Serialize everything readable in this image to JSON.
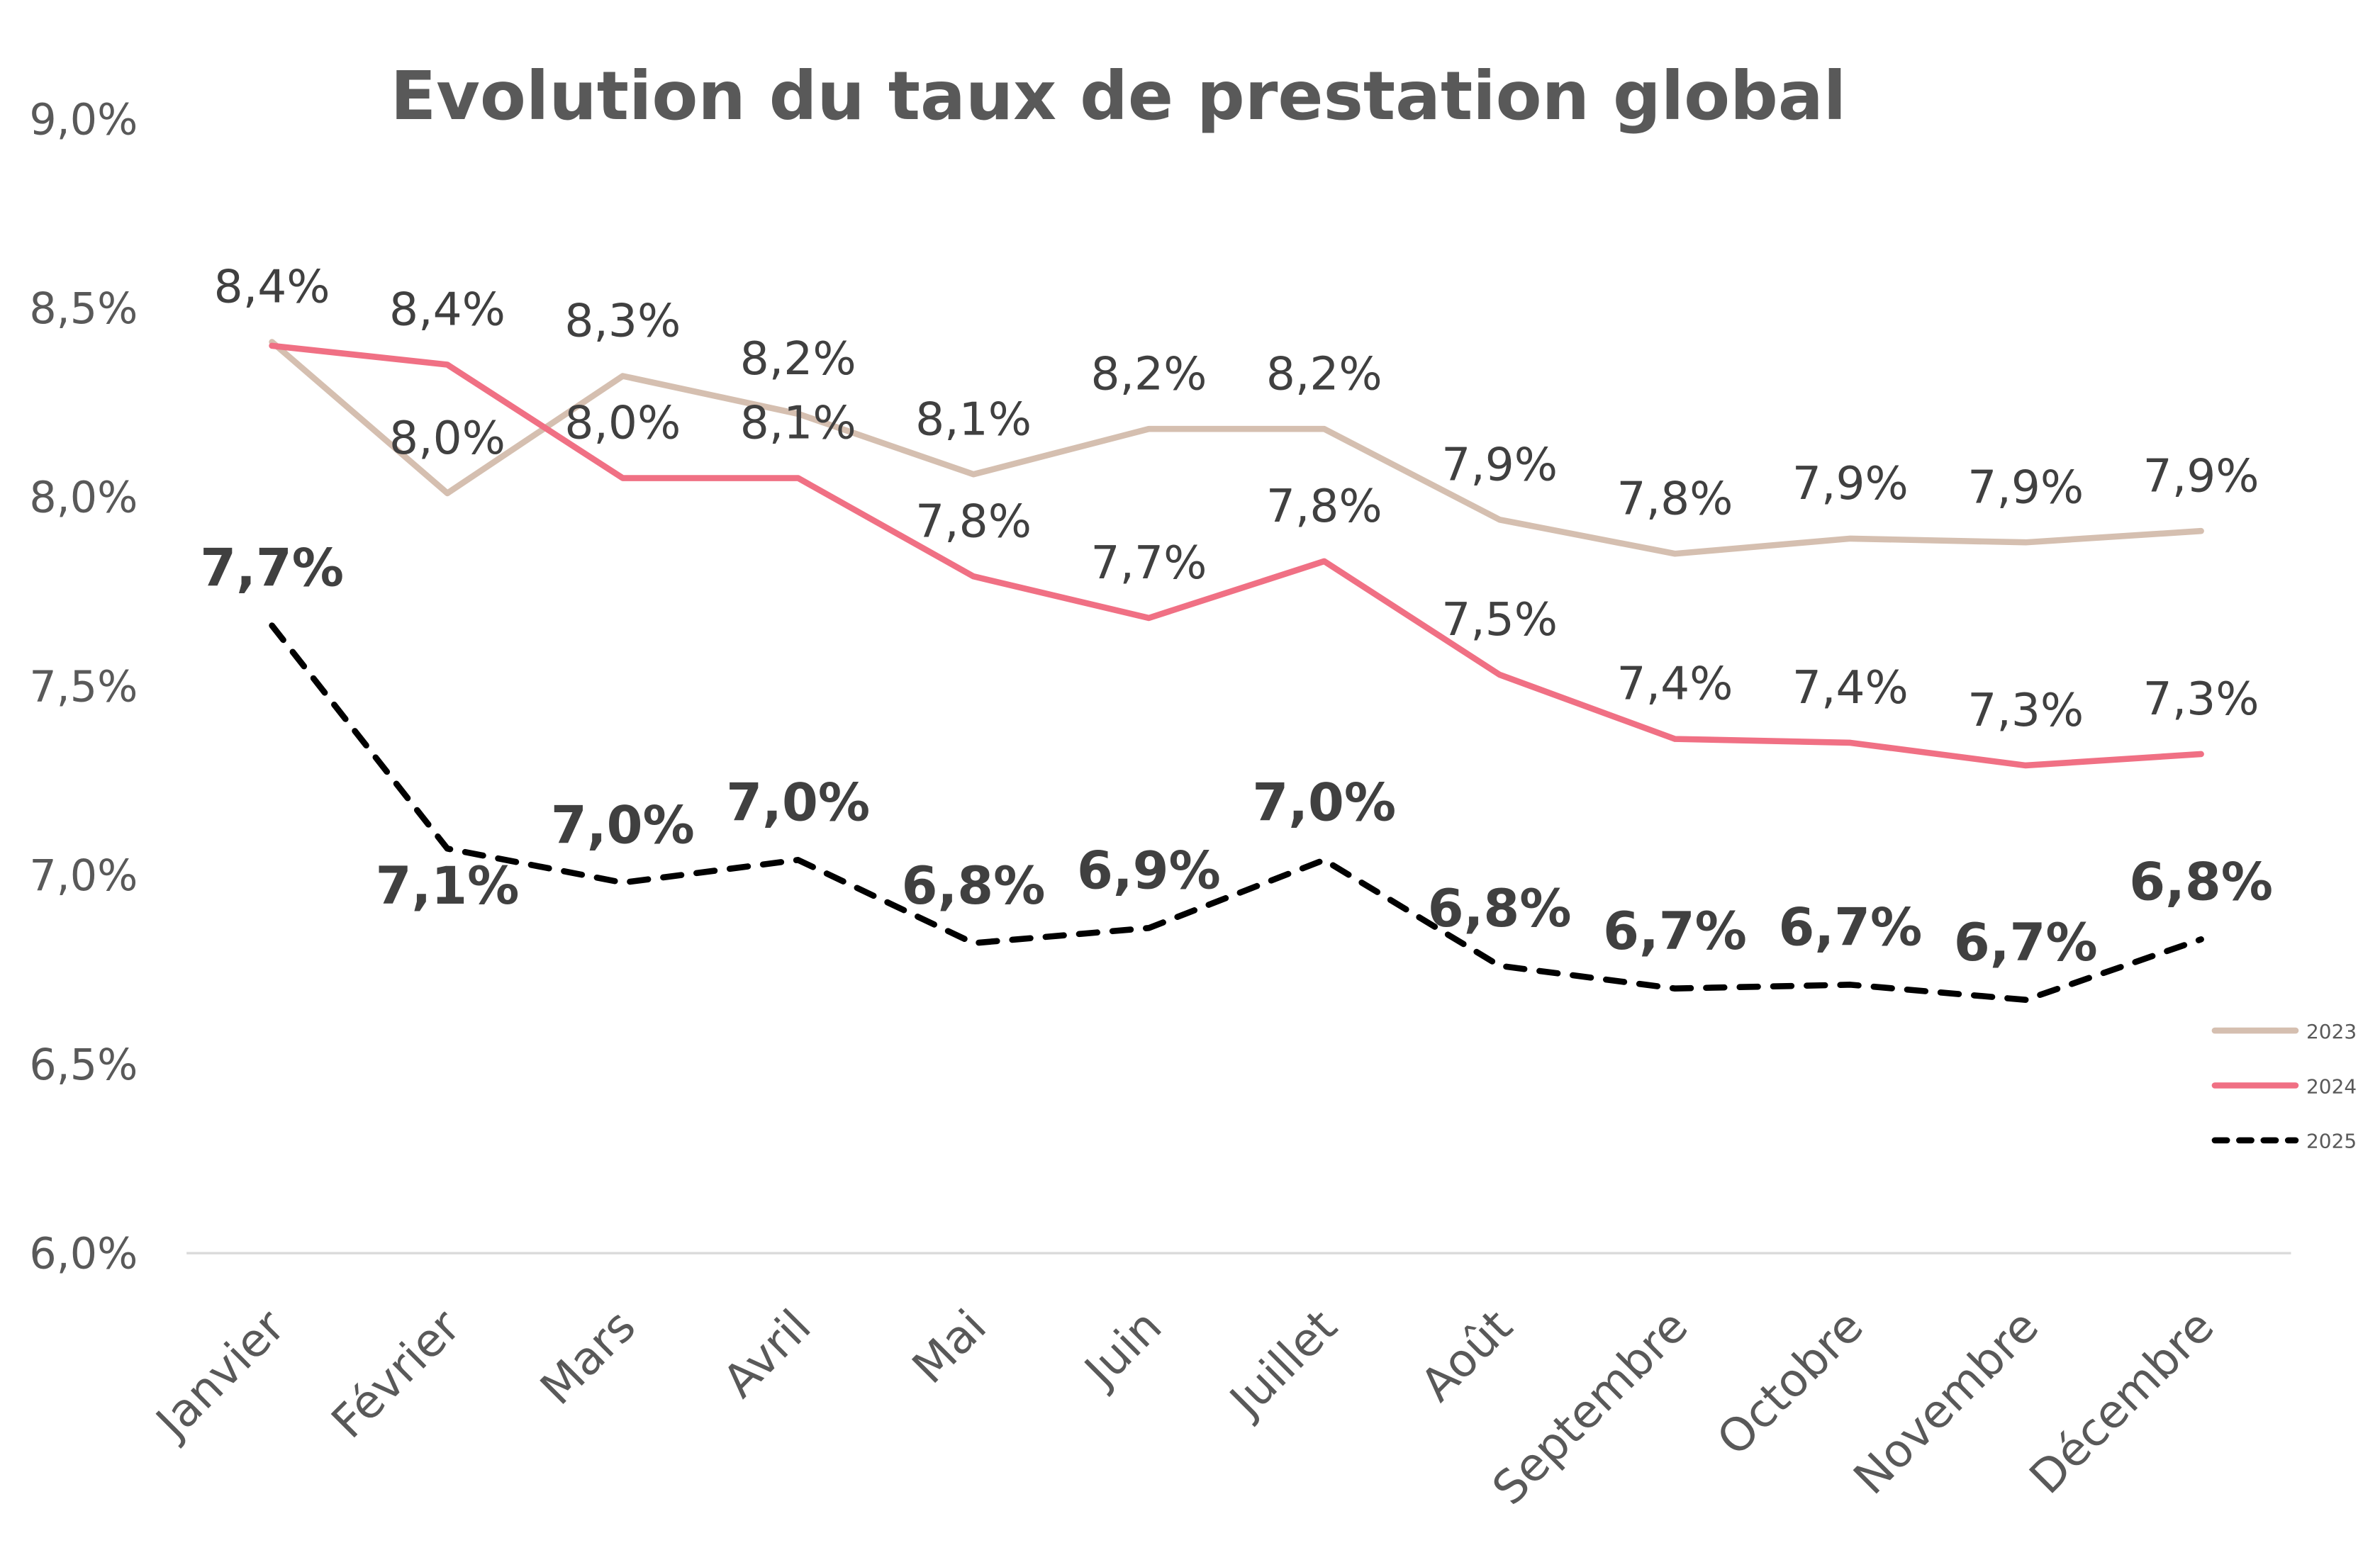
{
  "chart_data": {
    "type": "line",
    "title": "Evolution du taux de prestation global",
    "categories": [
      "Janvier",
      "Février",
      "Mars",
      "Avril",
      "Mai",
      "Juin",
      "Juillet",
      "Août",
      "Septembre",
      "Octobre",
      "Novembre",
      "Décembre"
    ],
    "ylim": [
      6.0,
      9.0
    ],
    "yticks": [
      "6,0%",
      "6,5%",
      "7,0%",
      "7,5%",
      "8,0%",
      "8,5%",
      "9,0%"
    ],
    "grid": false,
    "legend_position": "right",
    "series": [
      {
        "name": "2023",
        "color": "#D5BFB0",
        "style": "solid",
        "values": [
          8.41,
          8.01,
          8.32,
          8.22,
          8.06,
          8.18,
          8.18,
          7.94,
          7.85,
          7.89,
          7.88,
          7.91
        ],
        "labels": [
          "8,4%",
          "8,0%",
          "8,3%",
          "8,2%",
          "8,1%",
          "8,2%",
          "8,2%",
          "7,9%",
          "7,8%",
          "7,9%",
          "7,9%",
          "7,9%"
        ]
      },
      {
        "name": "2024",
        "color": "#F07084",
        "style": "solid",
        "values": [
          8.4,
          8.35,
          8.05,
          8.05,
          7.79,
          7.68,
          7.83,
          7.53,
          7.36,
          7.35,
          7.29,
          7.32
        ],
        "labels": [
          "8,4%",
          "8,4%",
          "8,0%",
          "8,1%",
          "7,8%",
          "7,7%",
          "7,8%",
          "7,5%",
          "7,4%",
          "7,4%",
          "7,3%",
          "7,3%"
        ]
      },
      {
        "name": "2025",
        "color": "#000000",
        "style": "dashed",
        "values": [
          7.66,
          7.07,
          6.98,
          7.04,
          6.82,
          6.86,
          7.04,
          6.76,
          6.7,
          6.71,
          6.67,
          6.83
        ],
        "labels": [
          "7,7%",
          "7,1%",
          "7,0%",
          "7,0%",
          "6,8%",
          "6,9%",
          "7,0%",
          "6,8%",
          "6,7%",
          "6,7%",
          "6,7%",
          "6,8%"
        ]
      }
    ]
  }
}
